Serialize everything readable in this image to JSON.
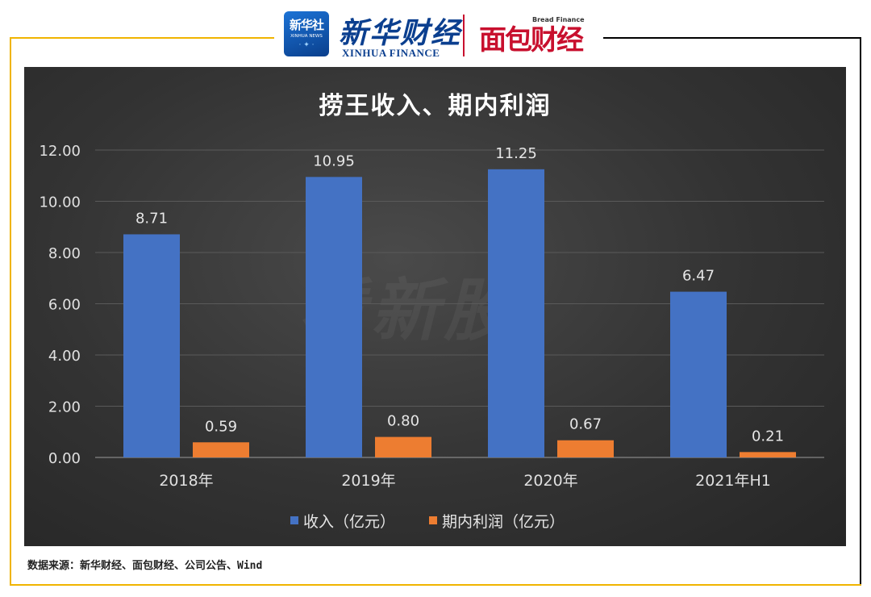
{
  "header": {
    "xinhua_badge_main": "新华社",
    "xinhua_badge_sub": "XINHUA NEWS",
    "xinhua_finance_cn": "新华财经",
    "xinhua_finance_en": "XINHUA FINANCE",
    "bread_finance_en": "Bread Finance",
    "bread_finance_cn": "面包财经"
  },
  "colors": {
    "income": "#4472c4",
    "profit": "#ed7d31",
    "frame_left": "#f0b400",
    "frame_right": "#000000",
    "panel_bg": "#333333"
  },
  "watermark": "看新股",
  "source_note": "数据来源：新华财经、面包财经、公司公告、Wind",
  "chart_data": {
    "type": "bar",
    "title": "捞王收入、期内利润",
    "categories": [
      "2018年",
      "2019年",
      "2020年",
      "2021年H1"
    ],
    "series": [
      {
        "name": "收入（亿元）",
        "values": [
          8.71,
          10.95,
          11.25,
          6.47
        ],
        "labels": [
          "8.71",
          "10.95",
          "11.25",
          "6.47"
        ]
      },
      {
        "name": "期内利润（亿元）",
        "values": [
          0.59,
          0.8,
          0.67,
          0.21
        ],
        "labels": [
          "0.59",
          "0.80",
          "0.67",
          "0.21"
        ]
      }
    ],
    "ylim": [
      0,
      12
    ],
    "yticks": [
      "0.00",
      "2.00",
      "4.00",
      "6.00",
      "8.00",
      "10.00",
      "12.00"
    ],
    "xlabel": "",
    "ylabel": "",
    "grid": true,
    "legend": "bottom"
  }
}
